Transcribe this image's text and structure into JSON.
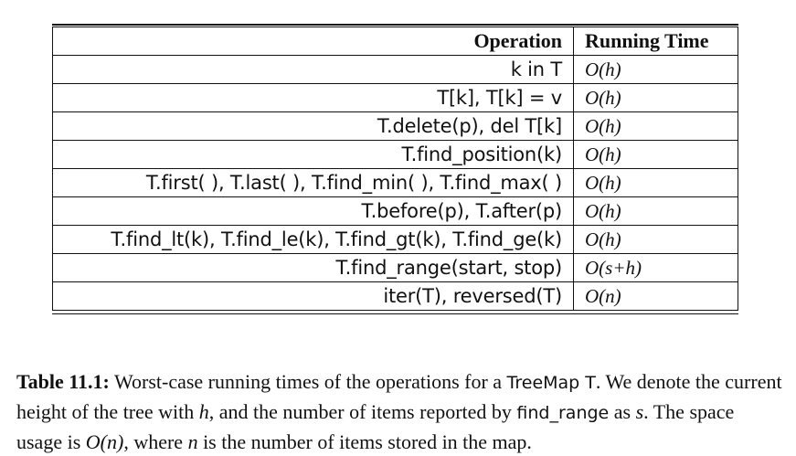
{
  "table": {
    "headers": {
      "operation": "Operation",
      "running_time": "Running Time"
    },
    "rows": [
      {
        "operation": "k in T",
        "running_time": "O(h)"
      },
      {
        "operation": "T[k], T[k] = v",
        "running_time": "O(h)"
      },
      {
        "operation": "T.delete(p), del T[k]",
        "running_time": "O(h)"
      },
      {
        "operation": "T.find_position(k)",
        "running_time": "O(h)"
      },
      {
        "operation": "T.first( ), T.last( ), T.find_min( ), T.find_max( )",
        "running_time": "O(h)"
      },
      {
        "operation": "T.before(p), T.after(p)",
        "running_time": "O(h)"
      },
      {
        "operation": "T.find_lt(k), T.find_le(k), T.find_gt(k), T.find_ge(k)",
        "running_time": "O(h)"
      },
      {
        "operation": "T.find_range(start, stop)",
        "running_time": "O(s+h)"
      },
      {
        "operation": "iter(T), reversed(T)",
        "running_time": "O(n)"
      }
    ]
  },
  "caption": {
    "lead": "Table 11.1:",
    "t1": " Worst-case running times of the operations for a ",
    "treemap": "TreeMap T",
    "t2": ". We denote the current height of the tree with ",
    "h": "h",
    "t3": ", and the number of items reported by ",
    "find_range": "find_range",
    "t4": " as ",
    "s": "s",
    "t5": ". The space usage is ",
    "space": "O(n)",
    "t6": ", where ",
    "n": "n",
    "t7": " is the number of items stored in the map."
  }
}
